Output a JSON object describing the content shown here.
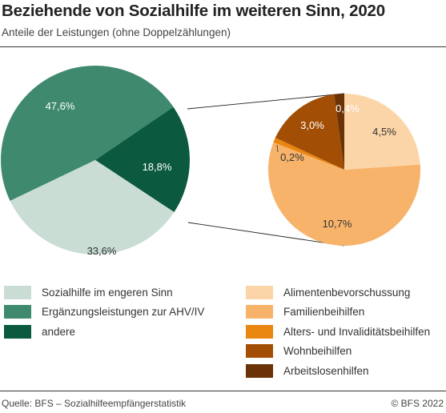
{
  "title": "Beziehende von Sozialhilfe im weiteren Sinn, 2020",
  "subtitle": "Anteile der Leistungen (ohne Doppelzählungen)",
  "source": "Quelle: BFS – Sozialhilfeempfängerstatistik",
  "copyright": "© BFS 2022",
  "chart_data": [
    {
      "type": "pie",
      "categories": [
        "Ergänzungsleistungen zur AHV/IV",
        "andere",
        "Sozialhilfe im engeren Sinn"
      ],
      "values": [
        47.6,
        18.8,
        33.6
      ],
      "labels": [
        "47,6%",
        "18,8%",
        "33,6%"
      ],
      "colors": [
        "#3f8a6e",
        "#0b5a40",
        "#c9ddd4"
      ]
    },
    {
      "type": "pie",
      "breakdown_of": "andere",
      "categories": [
        "Alimentenbevorschussung",
        "Familienbeihilfen",
        "Alters- und Invaliditätsbeihilfen",
        "Wohnbeihilfen",
        "Arbeitslosenhilfen"
      ],
      "values": [
        4.5,
        10.7,
        0.2,
        3.0,
        0.4
      ],
      "labels": [
        "4,5%",
        "10,7%",
        "0,2%",
        "3,0%",
        "0,4%"
      ],
      "colors": [
        "#fbd5a8",
        "#f7b36a",
        "#e9860f",
        "#a24f05",
        "#6a3206"
      ]
    }
  ],
  "legend_left": [
    {
      "label": "Sozialhilfe im engeren Sinn",
      "color": "#c9ddd4"
    },
    {
      "label": "Ergänzungsleistungen zur AHV/IV",
      "color": "#3f8a6e"
    },
    {
      "label": "andere",
      "color": "#0b5a40"
    }
  ],
  "legend_right": [
    {
      "label": "Alimentenbevorschussung",
      "color": "#fbd5a8"
    },
    {
      "label": "Familienbeihilfen",
      "color": "#f7b36a"
    },
    {
      "label": "Alters- und Invaliditätsbeihilfen",
      "color": "#e9860f"
    },
    {
      "label": "Wohnbeihilfen",
      "color": "#a24f05"
    },
    {
      "label": "Arbeitslosenhilfen",
      "color": "#6a3206"
    }
  ]
}
